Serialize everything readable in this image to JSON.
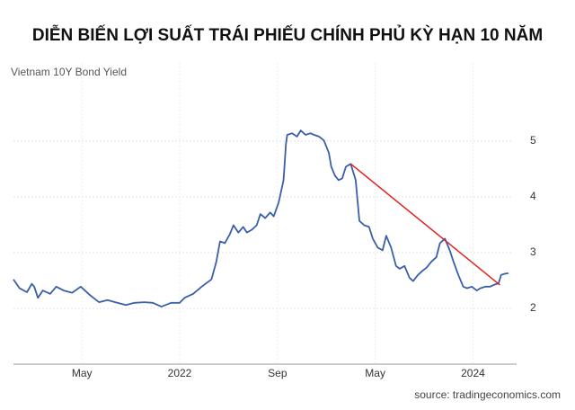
{
  "chart_data": {
    "type": "line",
    "title": "DIỄN BIẾN LỢI SUẤT TRÁI PHIẾU CHÍNH PHỦ KỲ HẠN 10 NĂM",
    "subtitle": "Vietnam 10Y Bond Yield",
    "source": "source: tradingeconomics.com",
    "x": [
      -1.6,
      -1.1,
      -0.5,
      -0.1,
      0.1,
      0.4,
      0.8,
      1.4,
      1.9,
      2.5,
      3.2,
      3.9,
      4.7,
      5.4,
      6.1,
      6.9,
      7.6,
      8.3,
      9.1,
      9.8,
      10.5,
      11.3,
      12.0,
      12.4,
      13.1,
      13.8,
      14.6,
      15.0,
      15.3,
      15.7,
      16.1,
      16.4,
      16.8,
      17.2,
      17.5,
      17.9,
      18.3,
      18.6,
      19.0,
      19.4,
      19.7,
      20.1,
      20.5,
      20.7,
      20.8,
      21.2,
      21.6,
      21.9,
      22.3,
      22.7,
      23.0,
      23.4,
      23.8,
      24.2,
      24.4,
      24.7,
      25.0,
      25.3,
      25.6,
      26.0,
      26.4,
      26.7,
      27.1,
      27.5,
      27.8,
      28.2,
      28.6,
      28.9,
      29.3,
      29.7,
      30.0,
      30.4,
      30.8,
      31.1,
      31.5,
      31.9,
      32.2,
      32.6,
      33.0,
      33.3,
      33.7,
      34.1,
      34.4,
      34.8,
      35.2,
      35.5,
      35.9,
      36.3,
      36.6,
      37.0,
      37.4,
      37.7,
      38.1,
      38.3,
      38.6,
      38.9
    ],
    "series": [
      {
        "color": "#3a5fa8",
        "values": [
          2.52,
          2.36,
          2.29,
          2.44,
          2.39,
          2.19,
          2.32,
          2.26,
          2.39,
          2.32,
          2.28,
          2.39,
          2.23,
          2.11,
          2.15,
          2.1,
          2.06,
          2.1,
          2.11,
          2.1,
          2.03,
          2.1,
          2.1,
          2.19,
          2.26,
          2.39,
          2.52,
          2.84,
          3.2,
          3.17,
          3.33,
          3.49,
          3.36,
          3.46,
          3.36,
          3.41,
          3.49,
          3.69,
          3.62,
          3.72,
          3.65,
          3.9,
          4.3,
          4.95,
          5.11,
          5.14,
          5.08,
          5.19,
          5.11,
          5.14,
          5.11,
          5.08,
          5.01,
          4.79,
          4.54,
          4.38,
          4.3,
          4.33,
          4.54,
          4.59,
          4.3,
          3.57,
          3.49,
          3.46,
          3.25,
          3.09,
          3.04,
          3.3,
          3.09,
          2.76,
          2.71,
          2.76,
          2.55,
          2.49,
          2.6,
          2.68,
          2.73,
          2.84,
          2.92,
          3.17,
          3.25,
          3.04,
          2.84,
          2.6,
          2.39,
          2.36,
          2.39,
          2.32,
          2.36,
          2.39,
          2.39,
          2.42,
          2.45,
          2.6,
          2.62,
          2.63
        ]
      }
    ],
    "trend_line": {
      "color": "#e02020",
      "x": [
        26.0,
        38.2
      ],
      "values": [
        4.59,
        2.42
      ]
    },
    "xlim": [
      -1.6,
      39.2
    ],
    "xticks": [
      {
        "value": 4,
        "label": "May"
      },
      {
        "value": 12,
        "label": "2022"
      },
      {
        "value": 20,
        "label": "Sep"
      },
      {
        "value": 28,
        "label": "May"
      },
      {
        "value": 36,
        "label": "2024"
      }
    ],
    "ylim": [
      1,
      6.4
    ],
    "yticks": [
      2,
      3,
      4,
      5
    ],
    "grid": true
  }
}
